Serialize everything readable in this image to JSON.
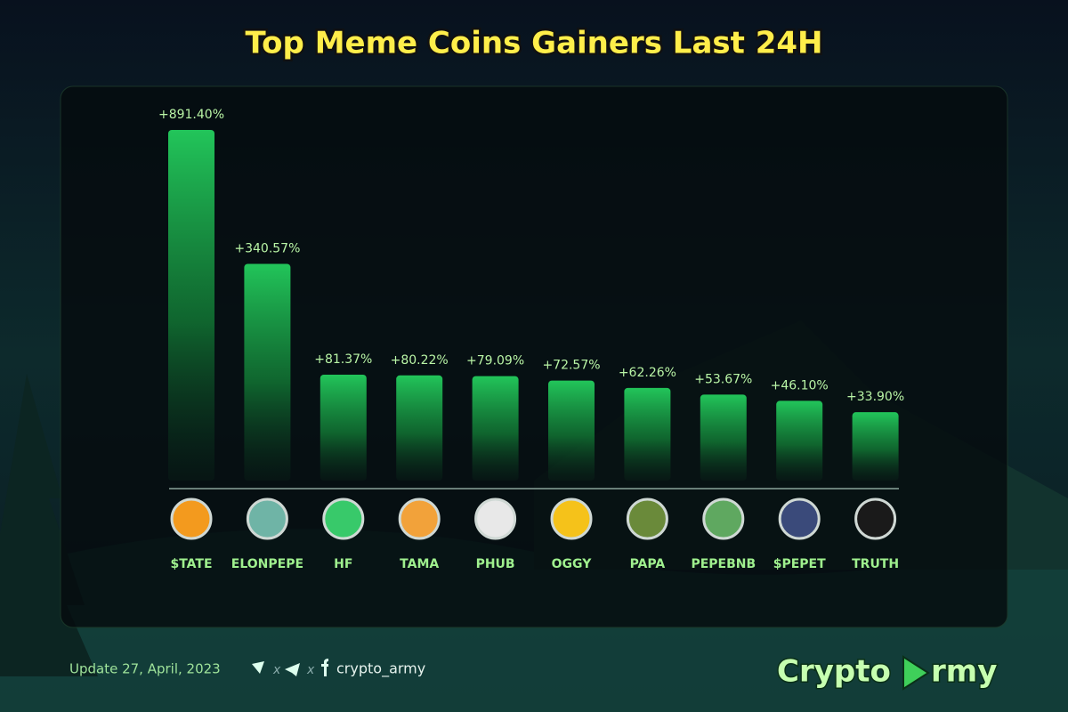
{
  "chart_data": {
    "type": "bar",
    "title": "Top Meme Coins Gainers Last 24H",
    "categories": [
      "$TATE",
      "ELONPEPE",
      "HF",
      "TAMA",
      "PHUB",
      "OGGY",
      "PAPA",
      "PEPEBNB",
      "$PEPET",
      "TRUTH"
    ],
    "values": [
      891.4,
      340.57,
      81.37,
      80.22,
      79.09,
      72.57,
      62.26,
      53.67,
      46.1,
      33.9
    ],
    "value_labels": [
      "+891.40%",
      "+340.57%",
      "+81.37%",
      "+80.22%",
      "+79.09%",
      "+72.57%",
      "+62.26%",
      "+53.67%",
      "+46.10%",
      "+33.90%"
    ],
    "color": "#1fb04e",
    "scale": "sqrt"
  },
  "footer": {
    "update": "Update 27, April, 2023",
    "separator": "x",
    "handle": "crypto_army",
    "brand": [
      "Crypto",
      "rmy"
    ]
  }
}
